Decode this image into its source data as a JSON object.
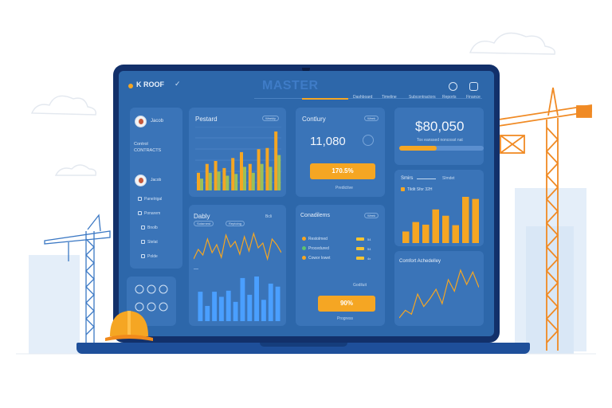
{
  "app": {
    "brand": "K ROOF",
    "title": "MASTER"
  },
  "nav": [
    "Dashboard",
    "Timeline",
    "Subcontractors",
    "Reports",
    "Finance"
  ],
  "sidebar": {
    "profile_name": "Jacob",
    "section": "Control\nCONTRACTS",
    "user2_name": "Jacob",
    "items": [
      "Panelrigal",
      "Ponarem",
      "Bnolb",
      "Stelat",
      "Polde"
    ]
  },
  "panels": {
    "progress": {
      "title": "Pestard",
      "pill": "Weekly"
    },
    "capacity": {
      "title": "Contlury",
      "pill": "Week",
      "value": "11,080",
      "button": "170.5%",
      "caption": "Predictive"
    },
    "revenue": {
      "value": "$80,050",
      "caption": "Tox eanssed noncosst nat"
    },
    "stacks": {
      "title": "Smirs",
      "pill": "Slmdet",
      "legend": "Tildit Sfor 32H"
    },
    "daily": {
      "title": "Dably",
      "pill1": "Sotarnest",
      "pill2": "Reptoing",
      "small": "Bcli"
    },
    "conditions": {
      "title": "Conadilems",
      "pill": "Week",
      "rows": [
        {
          "label": "Restolmed",
          "value": "54",
          "color": "#f5a623"
        },
        {
          "label": "Procedured",
          "value": "54",
          "color": "#5fc271"
        },
        {
          "label": "Cowor lowet",
          "value": "4x",
          "color": "#f5a623"
        }
      ],
      "status": "Godiluit",
      "button": "90%",
      "caption": "Progress"
    },
    "comfort": {
      "title": "Comfort Achedelley"
    }
  },
  "chart_data": [
    {
      "type": "bar",
      "title": "Pestard",
      "series": [
        {
          "values": [
            30,
            45,
            50,
            38,
            55,
            65,
            45,
            70,
            72,
            100
          ]
        },
        {
          "values": [
            20,
            30,
            32,
            25,
            28,
            40,
            30,
            45,
            40,
            60
          ]
        }
      ],
      "colors": [
        "#f5a623",
        "#9ac05a"
      ]
    },
    {
      "type": "bar",
      "title": "Smirs",
      "values": [
        22,
        40,
        35,
        64,
        52,
        34,
        88,
        84
      ],
      "color": "#f5a623"
    },
    {
      "type": "line",
      "title": "Dably",
      "values": [
        30,
        42,
        35,
        55,
        38,
        48,
        32,
        60,
        45,
        52,
        36,
        58,
        40,
        62,
        44,
        50,
        30,
        55,
        48,
        38
      ],
      "color": "#f5a623"
    },
    {
      "type": "bar",
      "title": "Dably",
      "values": [
        58,
        30,
        58,
        48,
        60,
        38,
        85,
        52,
        88,
        42,
        74,
        68
      ],
      "color": "#4a9fff"
    },
    {
      "type": "line",
      "title": "Comfort Achedelley",
      "values": [
        30,
        38,
        34,
        55,
        42,
        50,
        60,
        45,
        70,
        58,
        80,
        65,
        78,
        62
      ],
      "color": "#f5a623"
    }
  ]
}
